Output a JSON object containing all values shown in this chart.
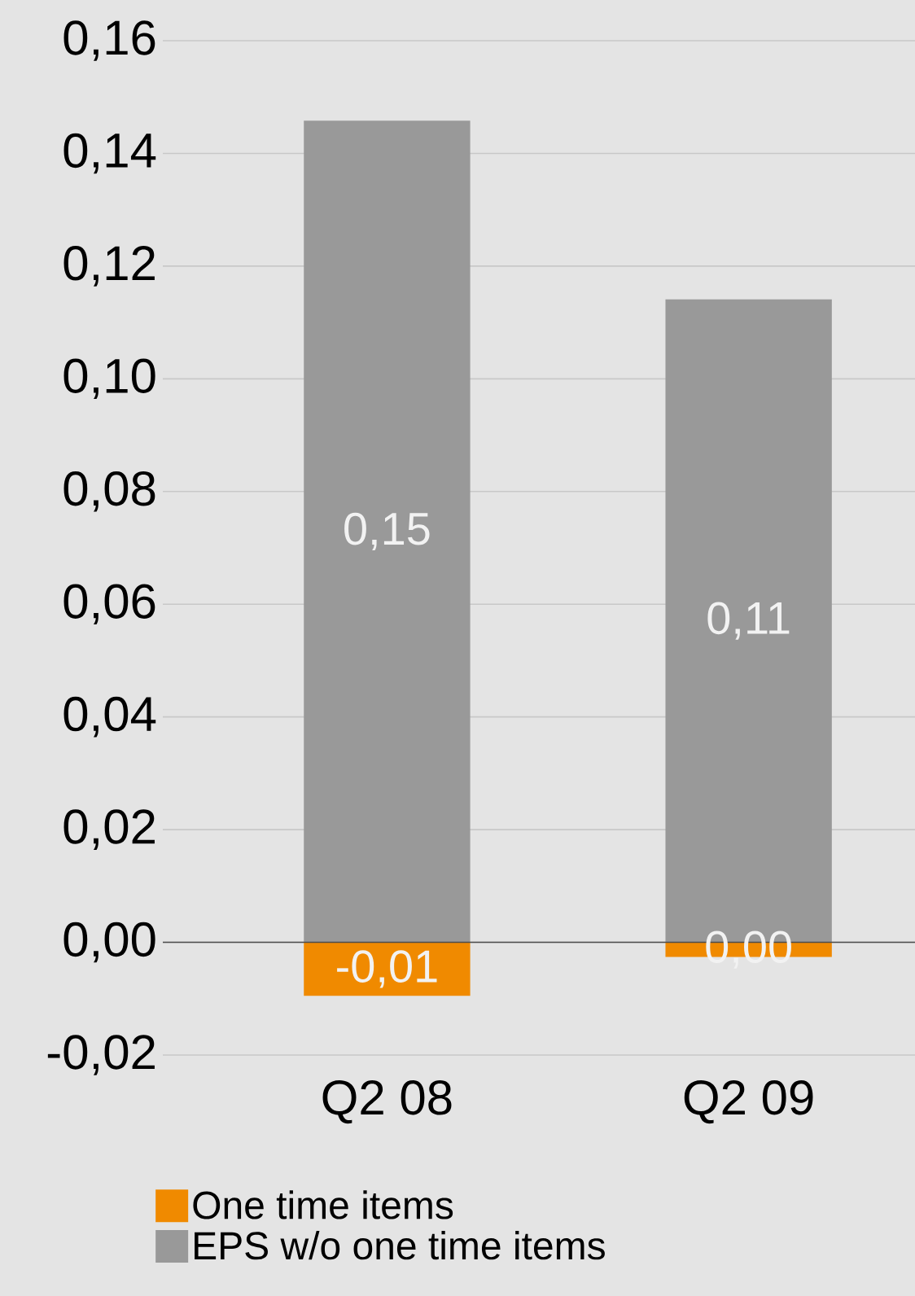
{
  "chart_data": {
    "type": "bar",
    "stacked": true,
    "categories": [
      "Q2 08",
      "Q2 09"
    ],
    "series": [
      {
        "name": "One time items",
        "color": "#f08a00",
        "values": [
          -0.0095,
          -0.0026
        ],
        "value_labels": [
          "-0,01",
          "0,00"
        ]
      },
      {
        "name": "EPS w/o one time items",
        "color": "#999999",
        "values": [
          0.1458,
          0.1141
        ],
        "value_labels": [
          "0,15",
          "0,11"
        ]
      }
    ],
    "ylim": [
      -0.02,
      0.16
    ],
    "yticks": [
      {
        "value": -0.02,
        "label": "-0,02"
      },
      {
        "value": 0,
        "label": "0,00"
      },
      {
        "value": 0.02,
        "label": "0,02"
      },
      {
        "value": 0.04,
        "label": "0,04"
      },
      {
        "value": 0.06,
        "label": "0,06"
      },
      {
        "value": 0.08,
        "label": "0,08"
      },
      {
        "value": 0.1,
        "label": "0,10"
      },
      {
        "value": 0.12,
        "label": "0,12"
      },
      {
        "value": 0.14,
        "label": "0,14"
      },
      {
        "value": 0.16,
        "label": "0,16"
      }
    ],
    "grid": "y",
    "legend": "bottom"
  }
}
